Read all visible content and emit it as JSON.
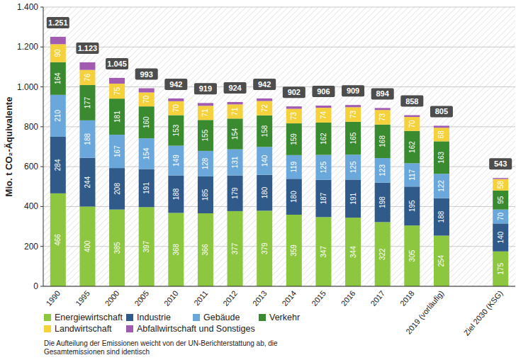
{
  "chart_data": {
    "type": "bar",
    "stacked": true,
    "y_label": "Mio. t CO₂-Äquivalente",
    "categories": [
      "1990",
      "1995",
      "2000",
      "2005",
      "2010",
      "2011",
      "2012",
      "2013",
      "2014",
      "2015",
      "2016",
      "2017",
      "2018",
      "2019 (vorläufig)",
      null,
      "Ziel 2030 (KSG)"
    ],
    "series": [
      {
        "name": "Energiewirtschaft",
        "color": "#8dc63f",
        "data_labels": true,
        "values": [
          466,
          400,
          385,
          397,
          368,
          366,
          377,
          379,
          359,
          347,
          344,
          322,
          305,
          254,
          null,
          175
        ]
      },
      {
        "name": "Industrie",
        "color": "#2f5a8a",
        "data_labels": true,
        "values": [
          284,
          244,
          208,
          191,
          188,
          185,
          179,
          180,
          180,
          187,
          191,
          198,
          195,
          188,
          null,
          140
        ]
      },
      {
        "name": "Gebäude",
        "color": "#6aa8dc",
        "data_labels": true,
        "values": [
          210,
          188,
          167,
          154,
          149,
          128,
          131,
          140,
          119,
          125,
          125,
          123,
          117,
          122,
          null,
          70
        ]
      },
      {
        "name": "Verkehr",
        "color": "#3a8a2f",
        "data_labels": true,
        "values": [
          164,
          177,
          181,
          160,
          153,
          155,
          154,
          158,
          159,
          162,
          165,
          168,
          162,
          163,
          null,
          95
        ]
      },
      {
        "name": "Landwirtschaft",
        "color": "#f5d23c",
        "data_labels": true,
        "values": [
          90,
          76,
          75,
          70,
          70,
          71,
          71,
          72,
          73,
          74,
          73,
          73,
          70,
          68,
          null,
          58
        ]
      },
      {
        "name": "Abfallwirtschaft und Sonstiges",
        "color": "#a15bb0",
        "data_labels": false,
        "values": [
          37,
          38,
          29,
          21,
          14,
          14,
          12,
          13,
          12,
          11,
          11,
          10,
          9,
          10,
          null,
          5
        ]
      }
    ],
    "totals": {
      "values": [
        1251,
        1123,
        1045,
        993,
        942,
        919,
        924,
        942,
        902,
        906,
        909,
        894,
        858,
        805,
        null,
        543
      ],
      "value_labels": [
        "1.251",
        "1.123",
        "1.045",
        "993",
        "942",
        "919",
        "924",
        "942",
        "902",
        "906",
        "909",
        "894",
        "858",
        "805",
        null,
        "543"
      ]
    },
    "ylim": [
      0,
      1400
    ],
    "yticks": [
      0,
      200,
      400,
      600,
      800,
      {
        "value": 1000,
        "label": "1.000"
      },
      {
        "value": 1200,
        "label": "1.200"
      },
      {
        "value": 1400,
        "label": "1.400"
      }
    ],
    "grid": true,
    "legend": "bottom",
    "annotations": [
      "Die Aufteilung der Emissionen weicht von der UN-Berichterstattung ab, die Gesamtemissionen sind identisch"
    ]
  }
}
